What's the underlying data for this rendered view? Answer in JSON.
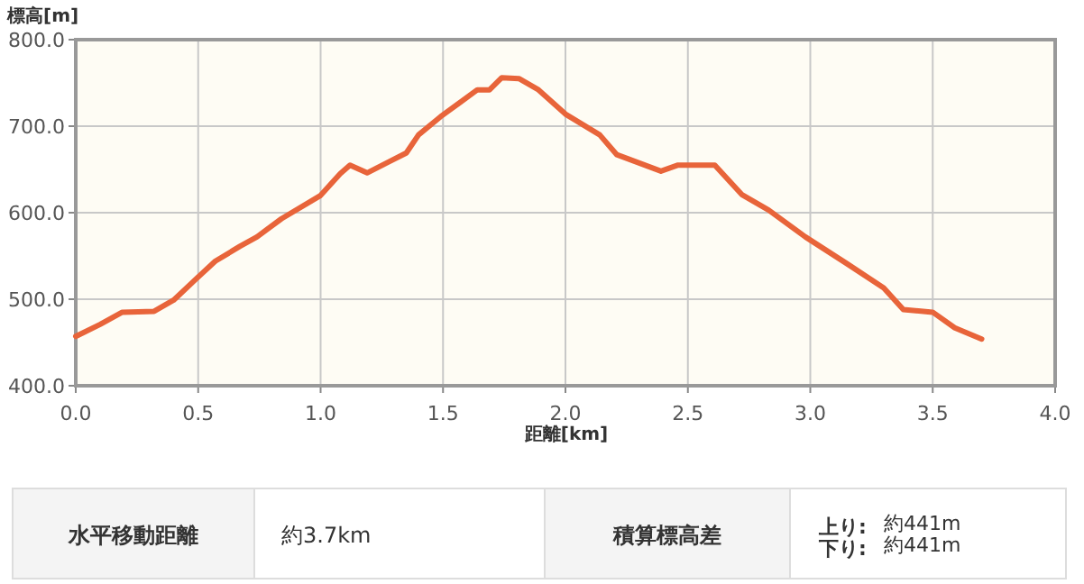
{
  "chart_data": {
    "type": "line",
    "xlabel": "距離[km]",
    "ylabel": "標高[m]",
    "xlim": [
      0,
      4
    ],
    "ylim": [
      400,
      800
    ],
    "xticks": [
      {
        "value": 0,
        "label": "0.0"
      },
      {
        "value": 0.5,
        "label": "0.5"
      },
      {
        "value": 1,
        "label": "1.0"
      },
      {
        "value": 1.5,
        "label": "1.5"
      },
      {
        "value": 2,
        "label": "2.0"
      },
      {
        "value": 2.5,
        "label": "2.5"
      },
      {
        "value": 3,
        "label": "3.0"
      },
      {
        "value": 3.5,
        "label": "3.5"
      },
      {
        "value": 4,
        "label": "4.0"
      }
    ],
    "yticks": [
      {
        "value": 400,
        "label": "400.0"
      },
      {
        "value": 500,
        "label": "500.0"
      },
      {
        "value": 600,
        "label": "600.0"
      },
      {
        "value": 700,
        "label": "700.0"
      },
      {
        "value": 800,
        "label": "800.0"
      }
    ],
    "grid": true,
    "marker": "none",
    "line_style": "solid",
    "series": [
      {
        "color": "#e8643a",
        "x": [
          0,
          0.1,
          0.19,
          0.32,
          0.4,
          0.49,
          0.57,
          0.67,
          0.74,
          0.84,
          1.0,
          1.08,
          1.12,
          1.19,
          1.28,
          1.35,
          1.4,
          1.49,
          1.64,
          1.69,
          1.74,
          1.81,
          1.89,
          2.0,
          2.14,
          2.21,
          2.39,
          2.46,
          2.61,
          2.72,
          2.83,
          2.98,
          3.15,
          3.3,
          3.38,
          3.5,
          3.59,
          3.7
        ],
        "values": [
          457,
          471,
          485,
          486,
          499,
          523,
          544,
          561,
          572,
          593,
          620,
          645,
          655,
          646,
          659,
          669,
          690,
          711,
          742,
          742,
          756,
          755,
          742,
          714,
          690,
          667,
          648,
          655,
          655,
          621,
          603,
          572,
          541,
          513,
          488,
          485,
          467,
          454
        ]
      }
    ],
    "annotations": [
      "水平移動距離",
      "約3.7km",
      "積算標高差",
      "上り:",
      "約441m",
      "下り:",
      "約441m"
    ]
  }
}
